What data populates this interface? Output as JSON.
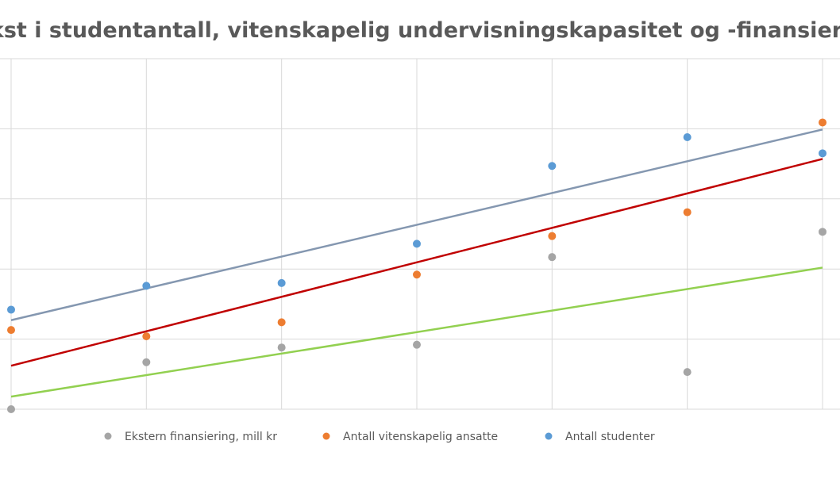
{
  "chart_data": {
    "type": "scatter",
    "title": "Vekst i studentantall, vitenskapelig undervisningskapasitet og -finansiering",
    "xlabel": "",
    "ylabel": "",
    "xlim": [
      0,
      6
    ],
    "ylim": [
      0,
      5
    ],
    "grid": true,
    "legend_position": "bottom",
    "series": [
      {
        "name": "Ekstern finansiering, mill kr",
        "color": "#A5A5A5",
        "trend_color": "#92D050",
        "x": [
          0,
          1,
          2,
          3,
          4,
          5,
          6
        ],
        "y": [
          0.0,
          0.67,
          0.88,
          0.92,
          2.17,
          0.53,
          2.53
        ],
        "trendline": [
          0.18,
          2.02
        ]
      },
      {
        "name": "Antall vitenskapelig ansatte",
        "color": "#ED7D31",
        "trend_color": "#C00000",
        "x": [
          0,
          1,
          2,
          3,
          4,
          5,
          6
        ],
        "y": [
          1.13,
          1.04,
          1.24,
          1.92,
          2.47,
          2.81,
          4.09
        ],
        "trendline": [
          0.62,
          3.57
        ]
      },
      {
        "name": "Antall studenter",
        "color": "#5B9BD5",
        "trend_color": "#8497B0",
        "x": [
          0,
          1,
          2,
          3,
          4,
          5,
          6
        ],
        "y": [
          1.42,
          1.76,
          1.8,
          2.36,
          3.47,
          3.88,
          3.65
        ],
        "trendline": [
          1.27,
          3.99
        ]
      }
    ]
  }
}
